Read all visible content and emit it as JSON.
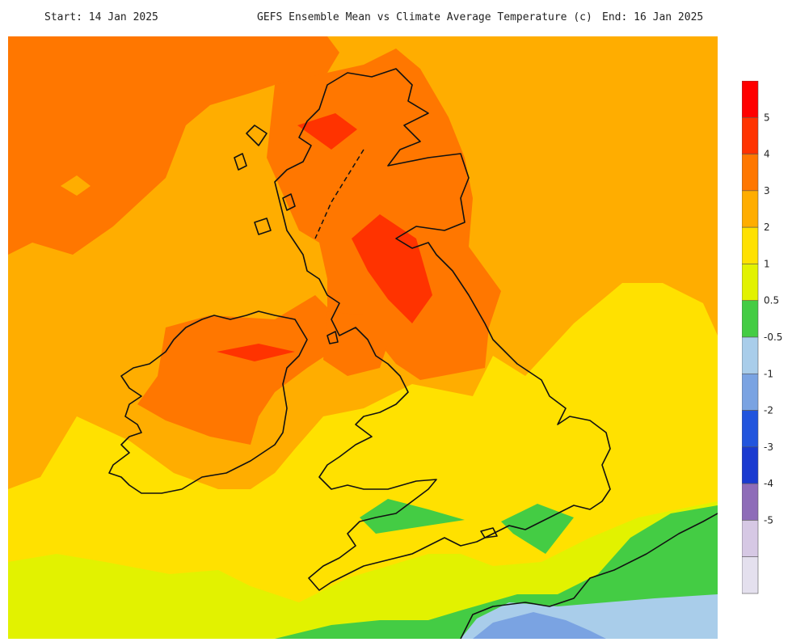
{
  "header": {
    "start": "Start: 14 Jan 2025",
    "title": "GEFS Ensemble Mean vs Climate Average Temperature (c)",
    "end": "End: 16 Jan 2025"
  },
  "colorbar": {
    "bins": [
      {
        "color": "#ff0000",
        "label": "5"
      },
      {
        "color": "#ff3300",
        "label": "4"
      },
      {
        "color": "#ff7700",
        "label": "3"
      },
      {
        "color": "#ffad00",
        "label": "2"
      },
      {
        "color": "#ffe100",
        "label": "1"
      },
      {
        "color": "#e2f200",
        "label": "0.5"
      },
      {
        "color": "#44cc44",
        "label": "-0.5"
      },
      {
        "color": "#a9cdea",
        "label": "-1"
      },
      {
        "color": "#7aa3e2",
        "label": "-2"
      },
      {
        "color": "#2255dd",
        "label": "-3"
      },
      {
        "color": "#1a3ad0",
        "label": "-4"
      },
      {
        "color": "#8e6cb8",
        "label": "-5"
      },
      {
        "color": "#d6c8e4",
        "label": ""
      },
      {
        "color": "#e4e0ee",
        "label": ""
      }
    ]
  },
  "map": {
    "region": "uk-ireland",
    "colors": {
      "c5": "#ff3300",
      "c3": "#ff7700",
      "c2": "#ffad00",
      "c1": "#ffe100",
      "c05": "#e2f200",
      "cg": "#44cc44",
      "cb1": "#a9cdea",
      "cb2": "#7aa3e2"
    }
  }
}
